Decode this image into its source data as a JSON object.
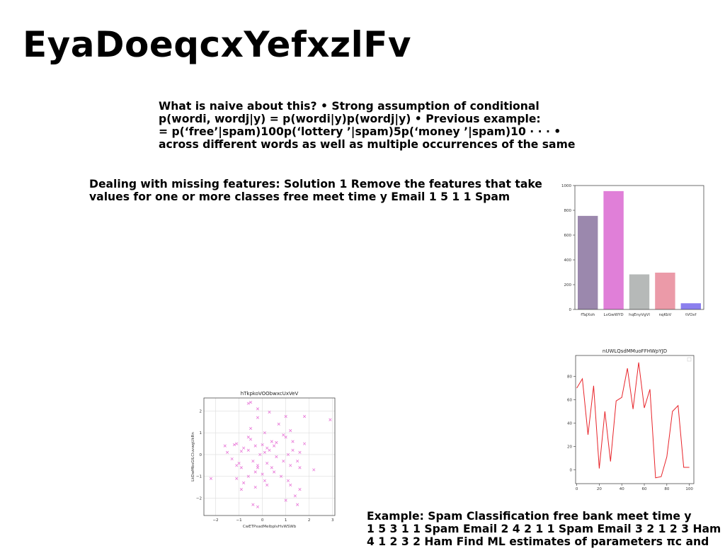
{
  "slide": {
    "title": "EyaDoeqcxYefxzlFv",
    "paragraph1": [
      "What is naive about this? • Strong assumption of conditional",
      "p(wordi, wordj|y) = p(wordi|y)p(wordj|y) • Previous example:",
      "= p(‘free’|spam)100p(‘lottery ’|spam)5p(‘money ’|spam)10 · · · •",
      "across different words as well as multiple occurrences of the same"
    ],
    "paragraph2": [
      "Dealing with missing features: Solution 1 Remove the features that take",
      "values for one or more classes free meet time y Email 1 5 1 1 Spam"
    ],
    "paragraph3": [
      "Example: Spam Classification free bank meet time y",
      "1 5 3 1 1 Spam Email 2 4 2 1 1 Spam Email 3 2 1 2 3 Ham",
      "4 1 2 3 2 Ham Find ML estimates of parameters πc and"
    ]
  },
  "chart_data": [
    {
      "type": "bar",
      "title": "",
      "categories": [
        "fTaJXoh",
        "LvGwWYD",
        "hqEnyVgVl",
        "nqKbV",
        "tVOxf"
      ],
      "values": [
        755,
        955,
        283,
        297,
        50
      ],
      "colors": [
        "#9b88ad",
        "#e07fd8",
        "#b6b9b8",
        "#eb9aa8",
        "#8b7fee"
      ],
      "ylim": [
        0,
        1000
      ],
      "yticks": [
        0,
        200,
        400,
        600,
        800,
        1000
      ],
      "xlabel": "",
      "ylabel": ""
    },
    {
      "type": "line",
      "title": "nUWLQsdMMuoFFHWpYJD",
      "x": [
        0,
        5,
        10,
        15,
        20,
        25,
        30,
        35,
        40,
        45,
        50,
        55,
        60,
        65,
        70,
        75,
        80,
        85,
        90,
        95,
        100
      ],
      "y": [
        70,
        78,
        30,
        72,
        1,
        50,
        7,
        59,
        62,
        87,
        52,
        92,
        53,
        69,
        -7,
        -6,
        11,
        50,
        55,
        2,
        2
      ],
      "color": "#e8242a",
      "xlim": [
        -1,
        104
      ],
      "ylim": [
        -12,
        98
      ],
      "xticks": [
        0,
        20,
        40,
        60,
        80,
        100
      ],
      "yticks": [
        0,
        20,
        40,
        60,
        80
      ],
      "xlabel": "",
      "ylabel": ""
    },
    {
      "type": "scatter",
      "title": "hTkpkoVOObwxcUxVeV",
      "xlabel": "CwETPxadMelbpIvHvWSWb",
      "ylabel": "LkDwMbsGILCluvwgUkRn",
      "color": "#e879d8",
      "xlim": [
        -2.5,
        3.1
      ],
      "ylim": [
        -2.8,
        2.6
      ],
      "xticks": [
        -2,
        -1,
        0,
        1,
        2,
        3
      ],
      "yticks": [
        -2,
        -1,
        0,
        1,
        2
      ],
      "grid": true,
      "points": [
        [
          -0.6,
          2.35
        ],
        [
          -0.5,
          2.4
        ],
        [
          -0.2,
          2.1
        ],
        [
          0.3,
          1.95
        ],
        [
          -0.2,
          1.7
        ],
        [
          1.0,
          1.75
        ],
        [
          1.8,
          1.75
        ],
        [
          2.9,
          1.6
        ],
        [
          0.7,
          1.4
        ],
        [
          -0.5,
          1.2
        ],
        [
          1.2,
          1.1
        ],
        [
          0.1,
          1.0
        ],
        [
          0.9,
          0.9
        ],
        [
          1.0,
          0.8
        ],
        [
          -0.6,
          0.8
        ],
        [
          -0.5,
          0.7
        ],
        [
          0.4,
          0.6
        ],
        [
          0.6,
          0.55
        ],
        [
          1.3,
          0.6
        ],
        [
          -1.1,
          0.5
        ],
        [
          -1.2,
          0.45
        ],
        [
          0.5,
          0.4
        ],
        [
          0.2,
          0.3
        ],
        [
          -0.3,
          0.4
        ],
        [
          1.8,
          0.5
        ],
        [
          -1.6,
          0.4
        ],
        [
          -0.8,
          0.3
        ],
        [
          -0.6,
          0.2
        ],
        [
          0.1,
          0.1
        ],
        [
          0.3,
          0.2
        ],
        [
          -0.9,
          0.15
        ],
        [
          -1.5,
          0.1
        ],
        [
          1.3,
          0.2
        ],
        [
          -0.1,
          0.0
        ],
        [
          1.1,
          0.0
        ],
        [
          1.6,
          0.1
        ],
        [
          0.6,
          -0.1
        ],
        [
          -1.3,
          -0.2
        ],
        [
          -0.4,
          -0.3
        ],
        [
          0.2,
          -0.4
        ],
        [
          0.9,
          -0.3
        ],
        [
          1.5,
          -0.3
        ],
        [
          -1.1,
          -0.5
        ],
        [
          -0.9,
          -0.6
        ],
        [
          -0.2,
          -0.5
        ],
        [
          0.4,
          -0.6
        ],
        [
          -1.0,
          -0.4
        ],
        [
          1.2,
          -0.5
        ],
        [
          2.2,
          -0.7
        ],
        [
          -0.3,
          -0.8
        ],
        [
          0.0,
          -0.9
        ],
        [
          0.5,
          -0.8
        ],
        [
          1.6,
          -0.6
        ],
        [
          -2.2,
          -1.1
        ],
        [
          -0.6,
          -1.0
        ],
        [
          0.8,
          -1.0
        ],
        [
          -1.1,
          -1.1
        ],
        [
          0.1,
          -1.2
        ],
        [
          1.1,
          -1.2
        ],
        [
          -0.8,
          -1.3
        ],
        [
          0.2,
          -1.4
        ],
        [
          1.2,
          -1.4
        ],
        [
          -0.3,
          -1.5
        ],
        [
          -0.9,
          -1.6
        ],
        [
          1.6,
          -1.6
        ],
        [
          -0.4,
          -2.3
        ],
        [
          -0.2,
          -2.4
        ],
        [
          1.0,
          -2.1
        ],
        [
          1.4,
          -1.9
        ],
        [
          1.5,
          -2.3
        ],
        [
          -0.2,
          -0.6
        ],
        [
          0.0,
          0.45
        ]
      ]
    }
  ]
}
